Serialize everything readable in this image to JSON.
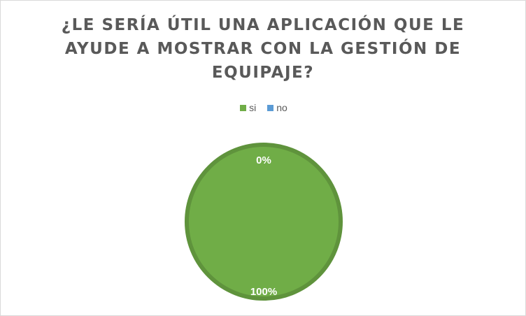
{
  "chart_data": {
    "type": "pie",
    "title": "¿LE SERÍA ÚTIL UNA APLICACIÓN QUE LE AYUDE A MOSTRAR CON LA GESTIÓN DE EQUIPAJE?",
    "categories": [
      "si",
      "no"
    ],
    "values": [
      100,
      0
    ],
    "data_labels": [
      "100%",
      "0%"
    ],
    "colors": [
      "#70ad47",
      "#5b9bd5"
    ],
    "legend_position": "top"
  }
}
